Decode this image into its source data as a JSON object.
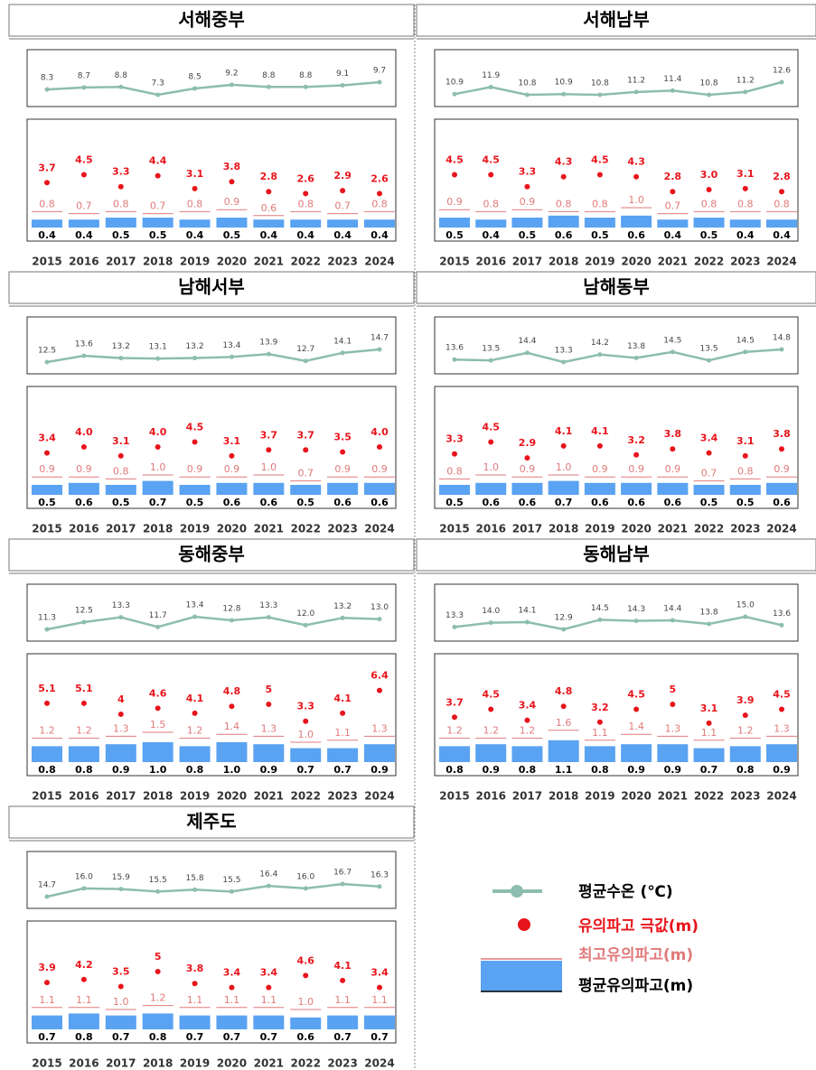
{
  "legend": [
    {
      "name": "평균수온 (℃)",
      "color": "#8dbdae"
    },
    {
      "name": "유의파고 극값(m)",
      "color": "#e8141b"
    },
    {
      "name": "최고유의파고(m)",
      "color": "#e07a7a"
    },
    {
      "name": "평균유의파고(m)",
      "color": "#5aa2f2"
    }
  ],
  "chart_data": [
    {
      "type": "combo",
      "title": "서해중부",
      "categories": [
        "2015",
        "2016",
        "2017",
        "2018",
        "2019",
        "2020",
        "2021",
        "2022",
        "2023",
        "2024"
      ],
      "series": [
        {
          "values": [
            8.3,
            8.7,
            8.8,
            7.3,
            8.5,
            9.2,
            8.8,
            8.8,
            9.1,
            9.7
          ]
        },
        {
          "values": [
            3.7,
            4.5,
            3.3,
            4.4,
            3.1,
            3.8,
            2.8,
            2.6,
            2.9,
            2.6
          ]
        },
        {
          "values": [
            0.8,
            0.7,
            0.8,
            0.7,
            0.8,
            0.9,
            0.6,
            0.8,
            0.7,
            0.8
          ]
        },
        {
          "values": [
            0.4,
            0.4,
            0.5,
            0.5,
            0.4,
            0.5,
            0.4,
            0.4,
            0.4,
            0.4
          ]
        }
      ]
    },
    {
      "type": "combo",
      "title": "서해남부",
      "categories": [
        "2015",
        "2016",
        "2017",
        "2018",
        "2019",
        "2020",
        "2021",
        "2022",
        "2023",
        "2024"
      ],
      "series": [
        {
          "values": [
            10.9,
            11.9,
            10.8,
            10.9,
            10.8,
            11.2,
            11.4,
            10.8,
            11.2,
            12.6
          ]
        },
        {
          "values": [
            4.5,
            4.5,
            3.3,
            4.3,
            4.5,
            4.3,
            2.8,
            3,
            3.1,
            2.8
          ],
          "value_labels": [
            "4.5",
            "4.5",
            "3.3",
            "4.3",
            "4.5",
            "4.3",
            "2.8",
            "3.0",
            "3.1",
            "2.8"
          ]
        },
        {
          "values": [
            0.9,
            0.8,
            0.9,
            0.8,
            0.8,
            1,
            0.7,
            0.8,
            0.8,
            0.8
          ],
          "value_labels": [
            "0.9",
            "0.8",
            "0.9",
            "0.8",
            "0.8",
            "1.0",
            "0.7",
            "0.8",
            "0.8",
            "0.8"
          ]
        },
        {
          "values": [
            0.5,
            0.4,
            0.5,
            0.6,
            0.5,
            0.6,
            0.4,
            0.5,
            0.4,
            0.4
          ]
        }
      ]
    },
    {
      "type": "combo",
      "title": "남해서부",
      "categories": [
        "2015",
        "2016",
        "2017",
        "2018",
        "2019",
        "2020",
        "2021",
        "2022",
        "2023",
        "2024"
      ],
      "series": [
        {
          "values": [
            12.5,
            13.6,
            13.2,
            13.1,
            13.2,
            13.4,
            13.9,
            12.7,
            14.1,
            14.7
          ]
        },
        {
          "values": [
            3.4,
            4,
            3.1,
            4,
            4.5,
            3.1,
            3.7,
            3.7,
            3.5,
            4
          ],
          "value_labels": [
            "3.4",
            "4.0",
            "3.1",
            "4.0",
            "4.5",
            "3.1",
            "3.7",
            "3.7",
            "3.5",
            "4.0"
          ]
        },
        {
          "values": [
            0.9,
            0.9,
            0.8,
            1,
            0.9,
            0.9,
            1,
            0.7,
            0.9,
            0.9
          ],
          "value_labels": [
            "0.9",
            "0.9",
            "0.8",
            "1.0",
            "0.9",
            "0.9",
            "1.0",
            "0.7",
            "0.9",
            "0.9"
          ]
        },
        {
          "values": [
            0.5,
            0.6,
            0.5,
            0.7,
            0.5,
            0.6,
            0.6,
            0.5,
            0.6,
            0.6
          ]
        }
      ]
    },
    {
      "type": "combo",
      "title": "남해동부",
      "categories": [
        "2015",
        "2016",
        "2017",
        "2018",
        "2019",
        "2020",
        "2021",
        "2022",
        "2023",
        "2024"
      ],
      "series": [
        {
          "values": [
            13.6,
            13.5,
            14.4,
            13.3,
            14.2,
            13.8,
            14.5,
            13.5,
            14.5,
            14.8
          ]
        },
        {
          "values": [
            3.3,
            4.5,
            2.9,
            4.1,
            4.1,
            3.2,
            3.8,
            3.4,
            3.1,
            3.8
          ]
        },
        {
          "values": [
            0.8,
            1,
            0.9,
            1,
            0.9,
            0.9,
            0.9,
            0.7,
            0.8,
            0.9
          ],
          "value_labels": [
            "0.8",
            "1.0",
            "0.9",
            "1.0",
            "0.9",
            "0.9",
            "0.9",
            "0.7",
            "0.8",
            "0.9"
          ]
        },
        {
          "values": [
            0.5,
            0.6,
            0.6,
            0.7,
            0.6,
            0.6,
            0.6,
            0.5,
            0.5,
            0.6
          ]
        }
      ]
    },
    {
      "type": "combo",
      "title": "동해중부",
      "categories": [
        "2015",
        "2016",
        "2017",
        "2018",
        "2019",
        "2020",
        "2021",
        "2022",
        "2023",
        "2024"
      ],
      "series": [
        {
          "values": [
            11.3,
            12.5,
            13.3,
            11.7,
            13.4,
            12.8,
            13.3,
            12,
            13.2,
            13
          ],
          "value_labels": [
            "11.3",
            "12.5",
            "13.3",
            "11.7",
            "13.4",
            "12.8",
            "13.3",
            "12.0",
            "13.2",
            "13.0"
          ]
        },
        {
          "values": [
            5.1,
            5.1,
            4,
            4.6,
            4.1,
            4.8,
            5,
            3.3,
            4.1,
            6.4
          ]
        },
        {
          "values": [
            1.2,
            1.2,
            1.3,
            1.5,
            1.2,
            1.4,
            1.3,
            1,
            1.1,
            1.3
          ],
          "value_labels": [
            "1.2",
            "1.2",
            "1.3",
            "1.5",
            "1.2",
            "1.4",
            "1.3",
            "1.0",
            "1.1",
            "1.3"
          ]
        },
        {
          "values": [
            0.8,
            0.8,
            0.9,
            1,
            0.8,
            1,
            0.9,
            0.7,
            0.7,
            0.9
          ],
          "value_labels": [
            "0.8",
            "0.8",
            "0.9",
            "1.0",
            "0.8",
            "1.0",
            "0.9",
            "0.7",
            "0.7",
            "0.9"
          ]
        }
      ]
    },
    {
      "type": "combo",
      "title": "동해남부",
      "categories": [
        "2015",
        "2016",
        "2017",
        "2018",
        "2019",
        "2020",
        "2021",
        "2022",
        "2023",
        "2024"
      ],
      "series": [
        {
          "values": [
            13.3,
            14,
            14.1,
            12.9,
            14.5,
            14.3,
            14.4,
            13.8,
            15,
            13.6
          ],
          "value_labels": [
            "13.3",
            "14.0",
            "14.1",
            "12.9",
            "14.5",
            "14.3",
            "14.4",
            "13.8",
            "15.0",
            "13.6"
          ]
        },
        {
          "values": [
            3.7,
            4.5,
            3.4,
            4.8,
            3.2,
            4.5,
            5,
            3.1,
            3.9,
            4.5
          ]
        },
        {
          "values": [
            1.2,
            1.2,
            1.2,
            1.6,
            1.1,
            1.4,
            1.3,
            1.1,
            1.2,
            1.3
          ]
        },
        {
          "values": [
            0.8,
            0.9,
            0.8,
            1.1,
            0.8,
            0.9,
            0.9,
            0.7,
            0.8,
            0.9
          ]
        }
      ]
    },
    {
      "type": "combo",
      "title": "제주도",
      "categories": [
        "2015",
        "2016",
        "2017",
        "2018",
        "2019",
        "2020",
        "2021",
        "2022",
        "2023",
        "2024"
      ],
      "series": [
        {
          "values": [
            14.7,
            16,
            15.9,
            15.5,
            15.8,
            15.5,
            16.4,
            16,
            16.7,
            16.3
          ],
          "value_labels": [
            "14.7",
            "16.0",
            "15.9",
            "15.5",
            "15.8",
            "15.5",
            "16.4",
            "16.0",
            "16.7",
            "16.3"
          ]
        },
        {
          "values": [
            3.9,
            4.2,
            3.5,
            5,
            3.8,
            3.4,
            3.4,
            4.6,
            4.1,
            3.4
          ]
        },
        {
          "values": [
            1.1,
            1.1,
            1,
            1.2,
            1.1,
            1.1,
            1.1,
            1,
            1.1,
            1.1
          ],
          "value_labels": [
            "1.1",
            "1.1",
            "1.0",
            "1.2",
            "1.1",
            "1.1",
            "1.1",
            "1.0",
            "1.1",
            "1.1"
          ]
        },
        {
          "values": [
            0.7,
            0.8,
            0.7,
            0.8,
            0.7,
            0.7,
            0.7,
            0.6,
            0.7,
            0.7
          ]
        }
      ]
    }
  ]
}
